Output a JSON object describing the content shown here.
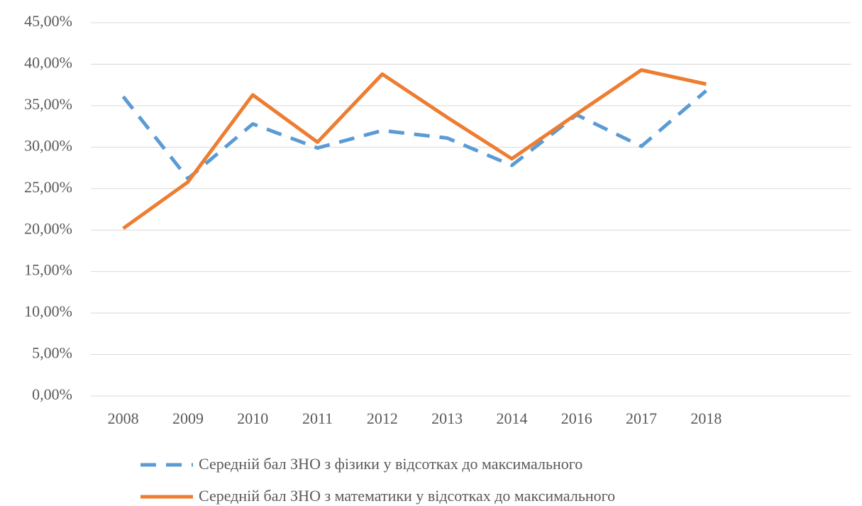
{
  "chart_data": {
    "type": "line",
    "categories": [
      "2008",
      "2009",
      "2010",
      "2011",
      "2012",
      "2013",
      "2014",
      "2016",
      "2017",
      "2018"
    ],
    "series": [
      {
        "name": "Середній бал ЗНО з фізики у відсотках до максимального",
        "color": "#5b9bd5",
        "dashed": true,
        "values": [
          36.1,
          26.2,
          32.8,
          29.9,
          32.0,
          31.1,
          27.8,
          33.9,
          30.1,
          36.8
        ]
      },
      {
        "name": "Середній бал ЗНО з математики у відсотках до максимального",
        "color": "#ed7d31",
        "dashed": false,
        "values": [
          20.2,
          25.8,
          36.3,
          30.6,
          38.8,
          33.6,
          28.6,
          34.0,
          39.3,
          37.6
        ]
      }
    ],
    "ylim": [
      0,
      45
    ],
    "yticks": [
      {
        "value": 0,
        "label": "0,00%"
      },
      {
        "value": 5,
        "label": "5,00%"
      },
      {
        "value": 10,
        "label": "10,00%"
      },
      {
        "value": 15,
        "label": "15,00%"
      },
      {
        "value": 20,
        "label": "20,00%"
      },
      {
        "value": 25,
        "label": "25,00%"
      },
      {
        "value": 30,
        "label": "30,00%"
      },
      {
        "value": 35,
        "label": "35,00%"
      },
      {
        "value": 40,
        "label": "40,00%"
      },
      {
        "value": 45,
        "label": "45,00%"
      }
    ],
    "grid": true
  }
}
